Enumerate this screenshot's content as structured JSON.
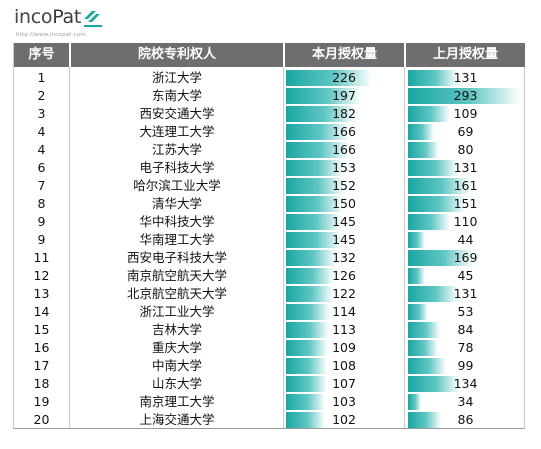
{
  "logo": {
    "brand_inco": "inco",
    "brand_pat": "Pat",
    "url": "http://www.incopat.com"
  },
  "colors": {
    "header_bg": "#6e6e6e",
    "bar_start": "#1aa6a3",
    "bar_end": "#ffffff"
  },
  "table": {
    "headers": [
      "序号",
      "院校专利权人",
      "本月授权量",
      "上月授权量"
    ],
    "bar_scale_max": 293,
    "rows": [
      {
        "rank": "1",
        "name": "浙江大学",
        "current": 226,
        "previous": 131
      },
      {
        "rank": "2",
        "name": "东南大学",
        "current": 197,
        "previous": 293
      },
      {
        "rank": "3",
        "name": "西安交通大学",
        "current": 182,
        "previous": 109
      },
      {
        "rank": "4",
        "name": "大连理工大学",
        "current": 166,
        "previous": 69
      },
      {
        "rank": "4",
        "name": "江苏大学",
        "current": 166,
        "previous": 80
      },
      {
        "rank": "6",
        "name": "电子科技大学",
        "current": 153,
        "previous": 131
      },
      {
        "rank": "7",
        "name": "哈尔滨工业大学",
        "current": 152,
        "previous": 161
      },
      {
        "rank": "8",
        "name": "清华大学",
        "current": 150,
        "previous": 151
      },
      {
        "rank": "9",
        "name": "华中科技大学",
        "current": 145,
        "previous": 110
      },
      {
        "rank": "9",
        "name": "华南理工大学",
        "current": 145,
        "previous": 44
      },
      {
        "rank": "11",
        "name": "西安电子科技大学",
        "current": 132,
        "previous": 169
      },
      {
        "rank": "12",
        "name": "南京航空航天大学",
        "current": 126,
        "previous": 45
      },
      {
        "rank": "13",
        "name": "北京航空航天大学",
        "current": 122,
        "previous": 131
      },
      {
        "rank": "14",
        "name": "浙江工业大学",
        "current": 114,
        "previous": 53
      },
      {
        "rank": "15",
        "name": "吉林大学",
        "current": 113,
        "previous": 84
      },
      {
        "rank": "16",
        "name": "重庆大学",
        "current": 109,
        "previous": 78
      },
      {
        "rank": "17",
        "name": "中南大学",
        "current": 108,
        "previous": 99
      },
      {
        "rank": "18",
        "name": "山东大学",
        "current": 107,
        "previous": 134
      },
      {
        "rank": "19",
        "name": "南京理工大学",
        "current": 103,
        "previous": 34
      },
      {
        "rank": "20",
        "name": "上海交通大学",
        "current": 102,
        "previous": 86
      }
    ]
  }
}
